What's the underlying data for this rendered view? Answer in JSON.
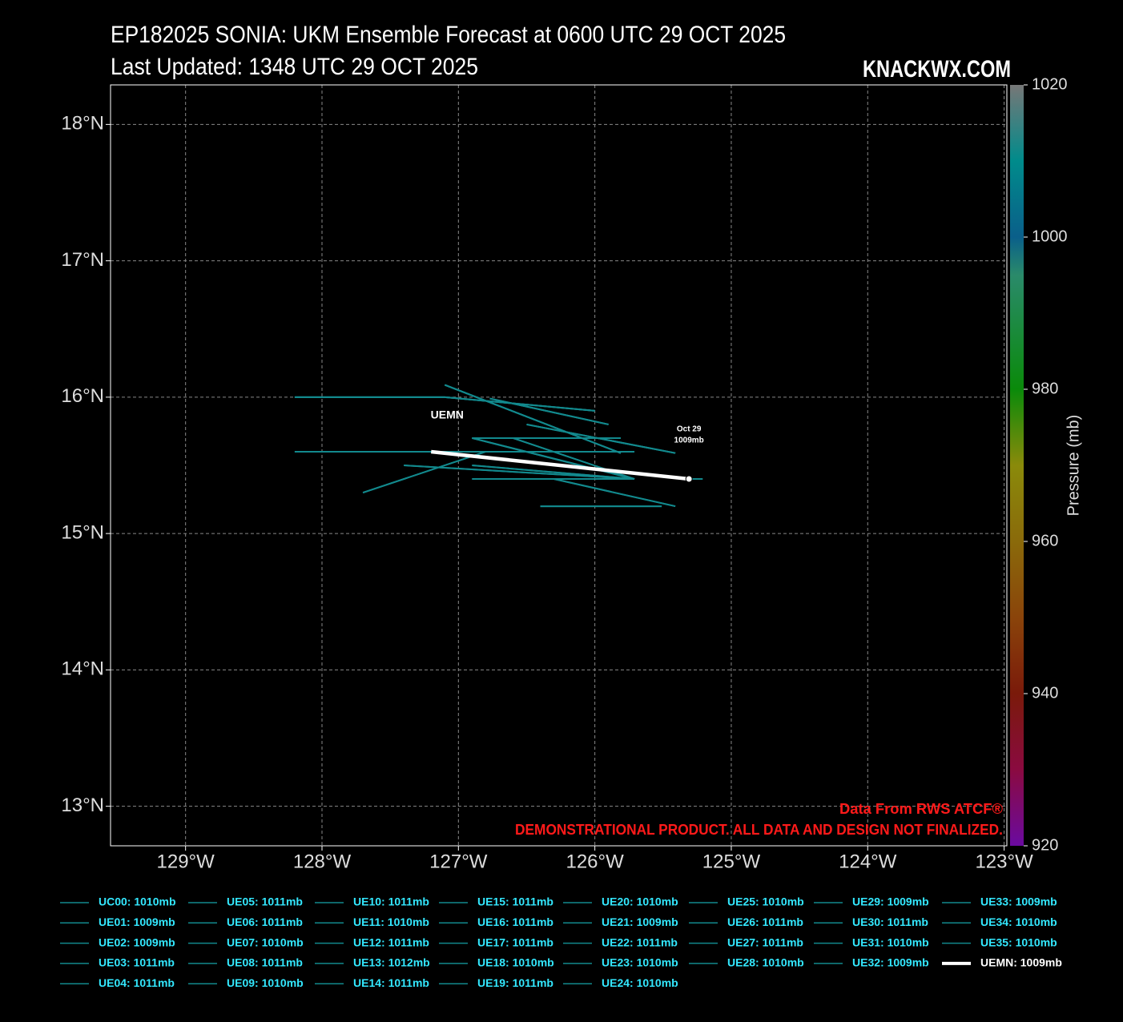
{
  "chart_data": {
    "type": "track",
    "title": "EP182025 SONIA: UKM Ensemble Forecast at 0600 UTC 29 OCT 2025",
    "subtitle": "Last Updated: 1348 UTC 29 OCT 2025",
    "watermark": "KNACKWX.COM",
    "footer": [
      "Data From RWS ATCF®",
      "DEMONSTRATIONAL PRODUCT. ALL DATA AND DESIGN NOT FINALIZED."
    ],
    "xlim": [
      -129.55,
      -122.98
    ],
    "ylim": [
      12.71,
      18.29
    ],
    "xticks": [
      {
        "value": -129,
        "label": "129°W"
      },
      {
        "value": -128,
        "label": "128°W"
      },
      {
        "value": -127,
        "label": "127°W"
      },
      {
        "value": -126,
        "label": "126°W"
      },
      {
        "value": -125,
        "label": "125°W"
      },
      {
        "value": -124,
        "label": "124°W"
      },
      {
        "value": -123,
        "label": "123°W"
      }
    ],
    "yticks": [
      {
        "value": 13,
        "label": "13°N"
      },
      {
        "value": 14,
        "label": "14°N"
      },
      {
        "value": 15,
        "label": "15°N"
      },
      {
        "value": 16,
        "label": "16°N"
      },
      {
        "value": 17,
        "label": "17°N"
      },
      {
        "value": 18,
        "label": "18°N"
      }
    ],
    "grid": true,
    "colorbar": {
      "label": "Pressure (mb)",
      "lim": [
        920,
        1020
      ],
      "ticks": [
        920,
        940,
        960,
        980,
        1000,
        1020
      ]
    },
    "member_color": "#12898d",
    "mean_color": "#ffffff",
    "mean_labels": {
      "start": "UEMN",
      "end": [
        "Oct 29",
        "1009mb"
      ]
    },
    "series": [
      {
        "name": "UC00: 1010mb",
        "x": [
          -128.2,
          -127.1,
          -126.0
        ],
        "y": [
          16.0,
          16.0,
          15.9
        ]
      },
      {
        "name": "UE01: 1009mb",
        "x": [
          -127.1,
          -125.81
        ],
        "y": [
          16.09,
          15.59
        ]
      },
      {
        "name": "UE02: 1009mb",
        "x": [
          -126.77,
          -125.9
        ],
        "y": [
          15.99,
          15.8
        ]
      },
      {
        "name": "UE03: 1011mb",
        "x": [
          -126.5,
          -125.41
        ],
        "y": [
          15.8,
          15.59
        ]
      },
      {
        "name": "UE04: 1011mb",
        "x": [
          -126.9,
          -125.81
        ],
        "y": [
          15.7,
          15.7
        ]
      },
      {
        "name": "UE05: 1011mb",
        "x": [
          -126.9,
          -125.71
        ],
        "y": [
          15.7,
          15.4
        ]
      },
      {
        "name": "UE06: 1011mb",
        "x": [
          -126.6,
          -125.71
        ],
        "y": [
          15.7,
          15.4
        ]
      },
      {
        "name": "UE07: 1010mb",
        "x": [
          -128.2,
          -125.71
        ],
        "y": [
          15.6,
          15.6
        ]
      },
      {
        "name": "UE08: 1011mb",
        "x": [
          -127.7,
          -126.8
        ],
        "y": [
          15.3,
          15.6
        ]
      },
      {
        "name": "UE09: 1010mb",
        "x": [
          -127.4,
          -125.71
        ],
        "y": [
          15.5,
          15.4
        ]
      },
      {
        "name": "UE10: 1011mb",
        "x": [
          -126.9,
          -125.71
        ],
        "y": [
          15.5,
          15.4
        ]
      },
      {
        "name": "UE11: 1010mb",
        "x": [
          -126.9,
          -125.71
        ],
        "y": [
          15.4,
          15.4
        ]
      },
      {
        "name": "UE12: 1011mb",
        "x": [
          -126.3,
          -125.41
        ],
        "y": [
          15.4,
          15.2
        ]
      },
      {
        "name": "UE13: 1012mb",
        "x": [
          -126.4,
          -125.51
        ],
        "y": [
          15.2,
          15.2
        ]
      },
      {
        "name": "UE14: 1011mb",
        "x": [
          -125.31,
          -125.21
        ],
        "y": [
          15.4,
          15.4
        ]
      },
      {
        "name": "UE15: 1011mb",
        "x": [
          -128.2,
          -127.1,
          -126.0
        ],
        "y": [
          16.0,
          16.0,
          15.9
        ]
      },
      {
        "name": "UE16: 1011mb",
        "x": [
          -127.1,
          -125.81
        ],
        "y": [
          16.09,
          15.59
        ]
      },
      {
        "name": "UE17: 1011mb",
        "x": [
          -126.77,
          -125.9
        ],
        "y": [
          15.99,
          15.8
        ]
      },
      {
        "name": "UE18: 1010mb",
        "x": [
          -126.5,
          -125.41
        ],
        "y": [
          15.8,
          15.59
        ]
      },
      {
        "name": "UE19: 1011mb",
        "x": [
          -126.9,
          -125.81
        ],
        "y": [
          15.7,
          15.7
        ]
      },
      {
        "name": "UE20: 1010mb",
        "x": [
          -126.9,
          -125.71
        ],
        "y": [
          15.7,
          15.4
        ]
      },
      {
        "name": "UE21: 1009mb",
        "x": [
          -126.6,
          -125.71
        ],
        "y": [
          15.7,
          15.4
        ]
      },
      {
        "name": "UE22: 1011mb",
        "x": [
          -128.2,
          -125.71
        ],
        "y": [
          15.6,
          15.6
        ]
      },
      {
        "name": "UE23: 1010mb",
        "x": [
          -127.7,
          -126.8
        ],
        "y": [
          15.3,
          15.6
        ]
      },
      {
        "name": "UE24: 1010mb",
        "x": [
          -127.4,
          -125.71
        ],
        "y": [
          15.5,
          15.4
        ]
      },
      {
        "name": "UE25: 1010mb",
        "x": [
          -126.9,
          -125.71
        ],
        "y": [
          15.5,
          15.4
        ]
      },
      {
        "name": "UE26: 1011mb",
        "x": [
          -126.9,
          -125.71
        ],
        "y": [
          15.4,
          15.4
        ]
      },
      {
        "name": "UE27: 1011mb",
        "x": [
          -126.3,
          -125.41
        ],
        "y": [
          15.4,
          15.2
        ]
      },
      {
        "name": "UE28: 1010mb",
        "x": [
          -126.4,
          -125.51
        ],
        "y": [
          15.2,
          15.2
        ]
      },
      {
        "name": "UE29: 1009mb",
        "x": [
          -125.31,
          -125.21
        ],
        "y": [
          15.4,
          15.4
        ]
      },
      {
        "name": "UE30: 1011mb",
        "x": [
          -128.2,
          -127.1,
          -126.0
        ],
        "y": [
          16.0,
          16.0,
          15.9
        ]
      },
      {
        "name": "UE31: 1010mb",
        "x": [
          -127.1,
          -125.81
        ],
        "y": [
          16.09,
          15.59
        ]
      },
      {
        "name": "UE32: 1009mb",
        "x": [
          -126.77,
          -125.9
        ],
        "y": [
          15.99,
          15.8
        ]
      },
      {
        "name": "UE33: 1009mb",
        "x": [
          -126.5,
          -125.41
        ],
        "y": [
          15.8,
          15.59
        ]
      },
      {
        "name": "UE34: 1010mb",
        "x": [
          -126.9,
          -125.81
        ],
        "y": [
          15.7,
          15.7
        ]
      },
      {
        "name": "UE35: 1010mb",
        "x": [
          -126.9,
          -125.71
        ],
        "y": [
          15.7,
          15.4
        ]
      },
      {
        "name": "UEMN: 1009mb",
        "x": [
          -127.2,
          -125.31
        ],
        "y": [
          15.6,
          15.4
        ],
        "mean": true
      }
    ]
  }
}
